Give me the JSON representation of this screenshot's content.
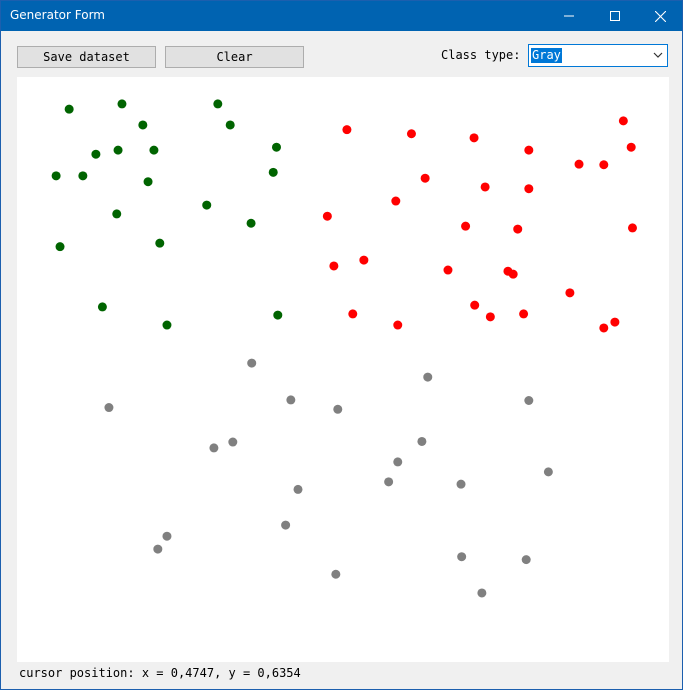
{
  "window": {
    "title": "Generator Form"
  },
  "toolbar": {
    "save_label": "Save dataset",
    "clear_label": "Clear",
    "class_type_label": "Class type:",
    "class_type_value": "Gray"
  },
  "status": {
    "cursor_text": "cursor position: x = 0,4747, y = 0,6354"
  },
  "colors": {
    "green": "#006400",
    "red": "#ff0000",
    "gray": "#808080",
    "accent": "#0078d7"
  },
  "icons": {
    "minimize": "minimize-icon",
    "maximize": "maximize-icon",
    "close": "close-icon",
    "dropdown": "chevron-down-icon"
  },
  "chart_data": {
    "type": "scatter",
    "xlim": [
      0,
      1
    ],
    "ylim": [
      0,
      1
    ],
    "grid": false,
    "series": [
      {
        "color": "#006400",
        "points": [
          [
            0.08,
            0.055
          ],
          [
            0.161,
            0.046
          ],
          [
            0.308,
            0.046
          ],
          [
            0.193,
            0.082
          ],
          [
            0.327,
            0.082
          ],
          [
            0.121,
            0.132
          ],
          [
            0.155,
            0.125
          ],
          [
            0.21,
            0.125
          ],
          [
            0.398,
            0.12
          ],
          [
            0.06,
            0.169
          ],
          [
            0.101,
            0.169
          ],
          [
            0.201,
            0.179
          ],
          [
            0.393,
            0.163
          ],
          [
            0.291,
            0.219
          ],
          [
            0.153,
            0.234
          ],
          [
            0.359,
            0.25
          ],
          [
            0.219,
            0.284
          ],
          [
            0.066,
            0.29
          ],
          [
            0.131,
            0.393
          ],
          [
            0.23,
            0.424
          ],
          [
            0.4,
            0.407
          ]
        ]
      },
      {
        "color": "#ff0000",
        "points": [
          [
            0.506,
            0.09
          ],
          [
            0.605,
            0.097
          ],
          [
            0.701,
            0.104
          ],
          [
            0.785,
            0.125
          ],
          [
            0.93,
            0.075
          ],
          [
            0.942,
            0.12
          ],
          [
            0.862,
            0.149
          ],
          [
            0.9,
            0.15
          ],
          [
            0.626,
            0.173
          ],
          [
            0.718,
            0.188
          ],
          [
            0.785,
            0.191
          ],
          [
            0.581,
            0.212
          ],
          [
            0.476,
            0.238
          ],
          [
            0.688,
            0.255
          ],
          [
            0.768,
            0.26
          ],
          [
            0.944,
            0.258
          ],
          [
            0.532,
            0.313
          ],
          [
            0.486,
            0.323
          ],
          [
            0.661,
            0.33
          ],
          [
            0.753,
            0.332
          ],
          [
            0.761,
            0.337
          ],
          [
            0.848,
            0.369
          ],
          [
            0.702,
            0.39
          ],
          [
            0.515,
            0.405
          ],
          [
            0.584,
            0.424
          ],
          [
            0.726,
            0.41
          ],
          [
            0.777,
            0.405
          ],
          [
            0.9,
            0.429
          ],
          [
            0.917,
            0.419
          ]
        ]
      },
      {
        "color": "#808080",
        "points": [
          [
            0.36,
            0.489
          ],
          [
            0.63,
            0.513
          ],
          [
            0.141,
            0.565
          ],
          [
            0.42,
            0.552
          ],
          [
            0.492,
            0.568
          ],
          [
            0.785,
            0.553
          ],
          [
            0.331,
            0.624
          ],
          [
            0.302,
            0.634
          ],
          [
            0.621,
            0.623
          ],
          [
            0.584,
            0.658
          ],
          [
            0.815,
            0.675
          ],
          [
            0.57,
            0.692
          ],
          [
            0.681,
            0.696
          ],
          [
            0.431,
            0.705
          ],
          [
            0.412,
            0.766
          ],
          [
            0.23,
            0.785
          ],
          [
            0.216,
            0.807
          ],
          [
            0.682,
            0.82
          ],
          [
            0.781,
            0.825
          ],
          [
            0.489,
            0.85
          ],
          [
            0.713,
            0.882
          ]
        ]
      }
    ]
  }
}
